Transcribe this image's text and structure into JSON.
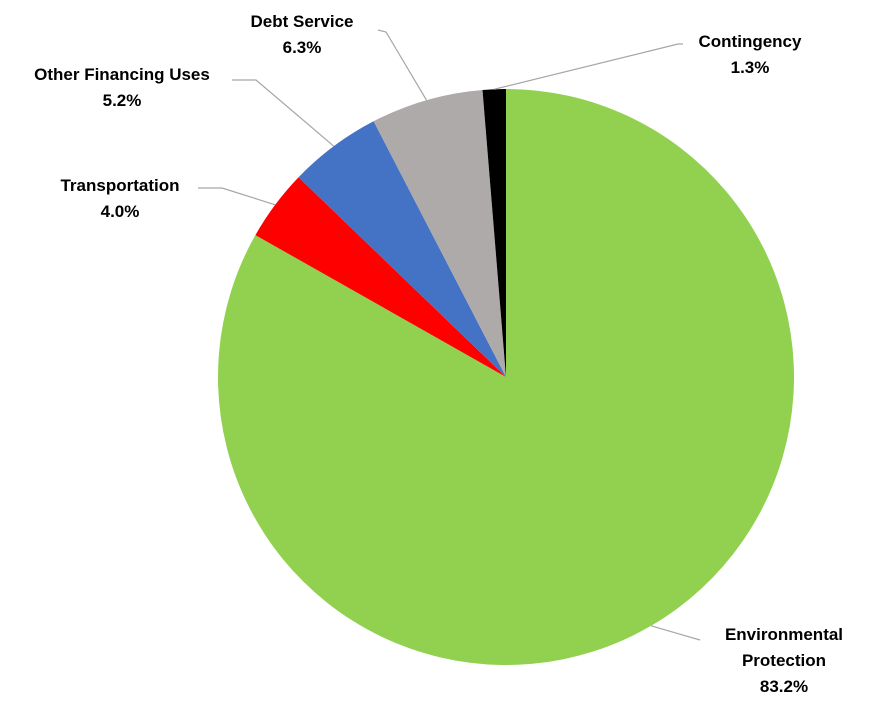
{
  "chart_data": {
    "type": "pie",
    "title": "",
    "slices": [
      {
        "label": "Environmental Protection",
        "label_lines": [
          "Environmental",
          "Protection"
        ],
        "value": 83.2,
        "display": "83.2%",
        "color": "#92d050"
      },
      {
        "label": "Transportation",
        "label_lines": [
          "Transportation"
        ],
        "value": 4.0,
        "display": "4.0%",
        "color": "#ff0000"
      },
      {
        "label": "Other Financing Uses",
        "label_lines": [
          "Other Financing Uses"
        ],
        "value": 5.2,
        "display": "5.2%",
        "color": "#4472c4"
      },
      {
        "label": "Debt Service",
        "label_lines": [
          "Debt Service"
        ],
        "value": 6.3,
        "display": "6.3%",
        "color": "#aeaaaa"
      },
      {
        "label": "Contingency",
        "label_lines": [
          "Contingency"
        ],
        "value": 1.3,
        "display": "1.3%",
        "color": "#000000"
      }
    ],
    "start_angle": "12 o'clock",
    "direction": "clockwise",
    "legend": "none",
    "data_labels": "outside with leader lines"
  }
}
